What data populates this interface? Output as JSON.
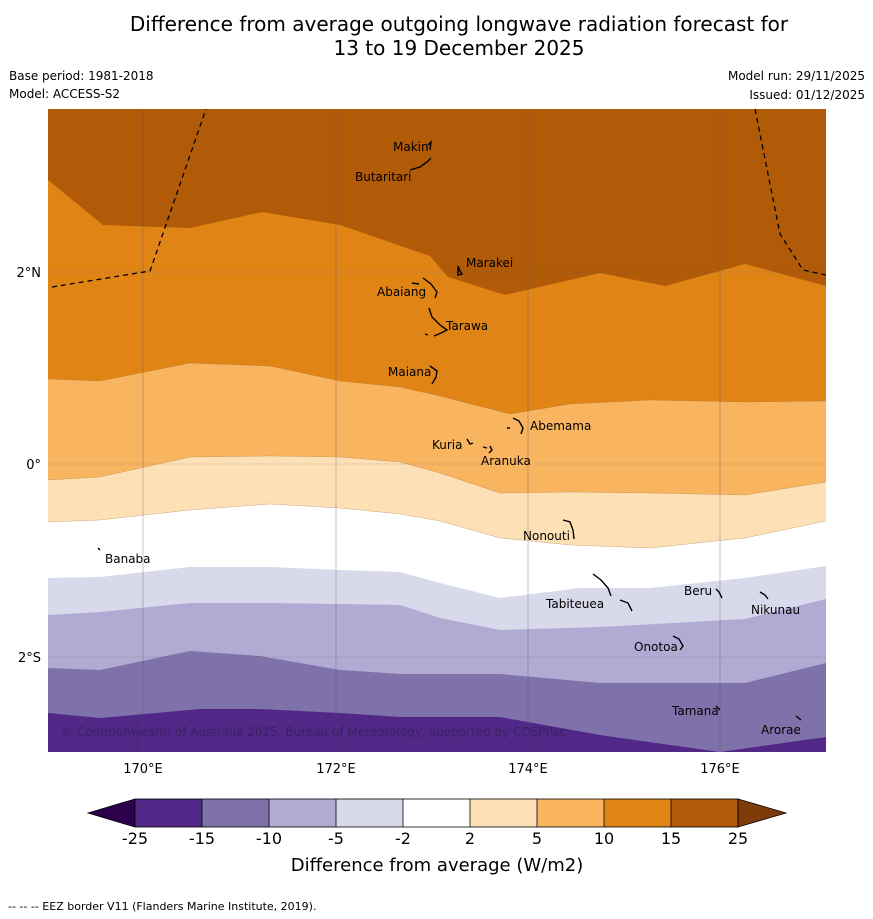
{
  "title_line1": "Difference from average outgoing longwave radiation forecast for",
  "title_line2": "13 to 19 December 2025",
  "base_period": "Base period: 1981-2018",
  "model": "Model: ACCESS-S2",
  "model_run": "Model run: 29/11/2025",
  "issued": "Issued: 01/12/2025",
  "copyright": "© Commonwealth of Australia 2025, Bureau of Meteorology, supported by COSPPac",
  "lon_labels": [
    "170°E",
    "172°E",
    "174°E",
    "176°E"
  ],
  "lat_labels": [
    "2°N",
    "0°",
    "2°S"
  ],
  "places": [
    "Makin",
    "Butaritari",
    "Marakei",
    "Abaiang",
    "Tarawa",
    "Maiana",
    "Abemama",
    "Kuria",
    "Aranuka",
    "Nonouti",
    "Banaba",
    "Tabiteuea",
    "Beru",
    "Nikunau",
    "Onotoa",
    "Tamana",
    "Arorae"
  ],
  "colorbar": {
    "tick_labels": [
      "-25",
      "-15",
      "-10",
      "-5",
      "-2",
      "2",
      "5",
      "10",
      "15",
      "25"
    ],
    "label": "Difference from average (W/m2)",
    "colors": [
      "#512887",
      "#7f72ab",
      "#b1aad3",
      "#d8d9ea",
      "#ffffff",
      "#fde0b5",
      "#f9b460",
      "#e08416",
      "#b15a07",
      "#7d3c09",
      "#2d004b"
    ]
  },
  "footer": "--  --  -- EEZ border V11 (Flanders Marine Institute, 2019)."
}
